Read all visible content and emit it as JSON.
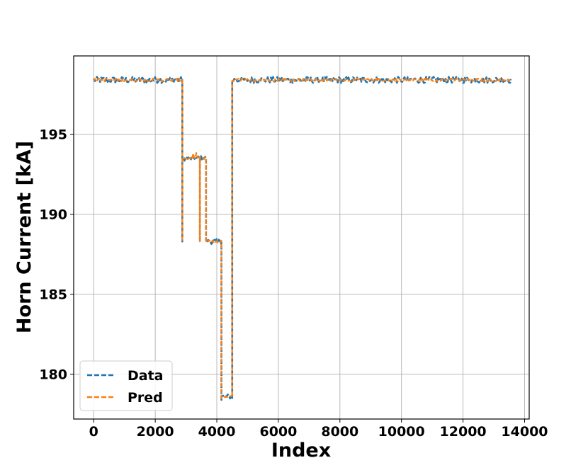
{
  "chart_data": {
    "type": "line",
    "title": "",
    "xlabel": "Index",
    "ylabel": "Horn Current [kA]",
    "xlim": [
      -650,
      14150
    ],
    "ylim": [
      177.2,
      199.9
    ],
    "xticks": [
      0,
      2000,
      4000,
      6000,
      8000,
      10000,
      12000,
      14000
    ],
    "yticks": [
      180,
      185,
      190,
      195
    ],
    "grid": true,
    "legend_position": "bottom-left",
    "series": [
      {
        "name": "Data",
        "color": "#1f77b4",
        "style": "dashed",
        "segments": [
          {
            "x_start": 0,
            "x_end": 2880,
            "level": 198.4
          },
          {
            "x_start": 2880,
            "x_end": 3450,
            "level": 193.5
          },
          {
            "x_start": 3450,
            "x_end": 3650,
            "level": 193.5
          },
          {
            "x_start": 3650,
            "x_end": 4150,
            "level": 188.3
          },
          {
            "x_start": 4150,
            "x_end": 4500,
            "level": 178.6
          },
          {
            "x_start": 4500,
            "x_end": 13550,
            "level": 198.4
          }
        ]
      },
      {
        "name": "Pred",
        "color": "#ff7f0e",
        "style": "dashed",
        "segments": [
          {
            "x_start": 0,
            "x_end": 2880,
            "level": 198.4
          },
          {
            "x_start": 2880,
            "x_end": 3450,
            "level": 193.5
          },
          {
            "x_start": 3450,
            "x_end": 3650,
            "level": 193.5
          },
          {
            "x_start": 3650,
            "x_end": 4150,
            "level": 188.3
          },
          {
            "x_start": 4150,
            "x_end": 4500,
            "level": 178.6
          },
          {
            "x_start": 4500,
            "x_end": 13550,
            "level": 198.4
          }
        ]
      }
    ],
    "spikes": [
      {
        "x": 2880,
        "value": 188.3
      },
      {
        "x": 3450,
        "value": 188.3
      },
      {
        "x": 4150,
        "value": 178.4
      }
    ]
  }
}
